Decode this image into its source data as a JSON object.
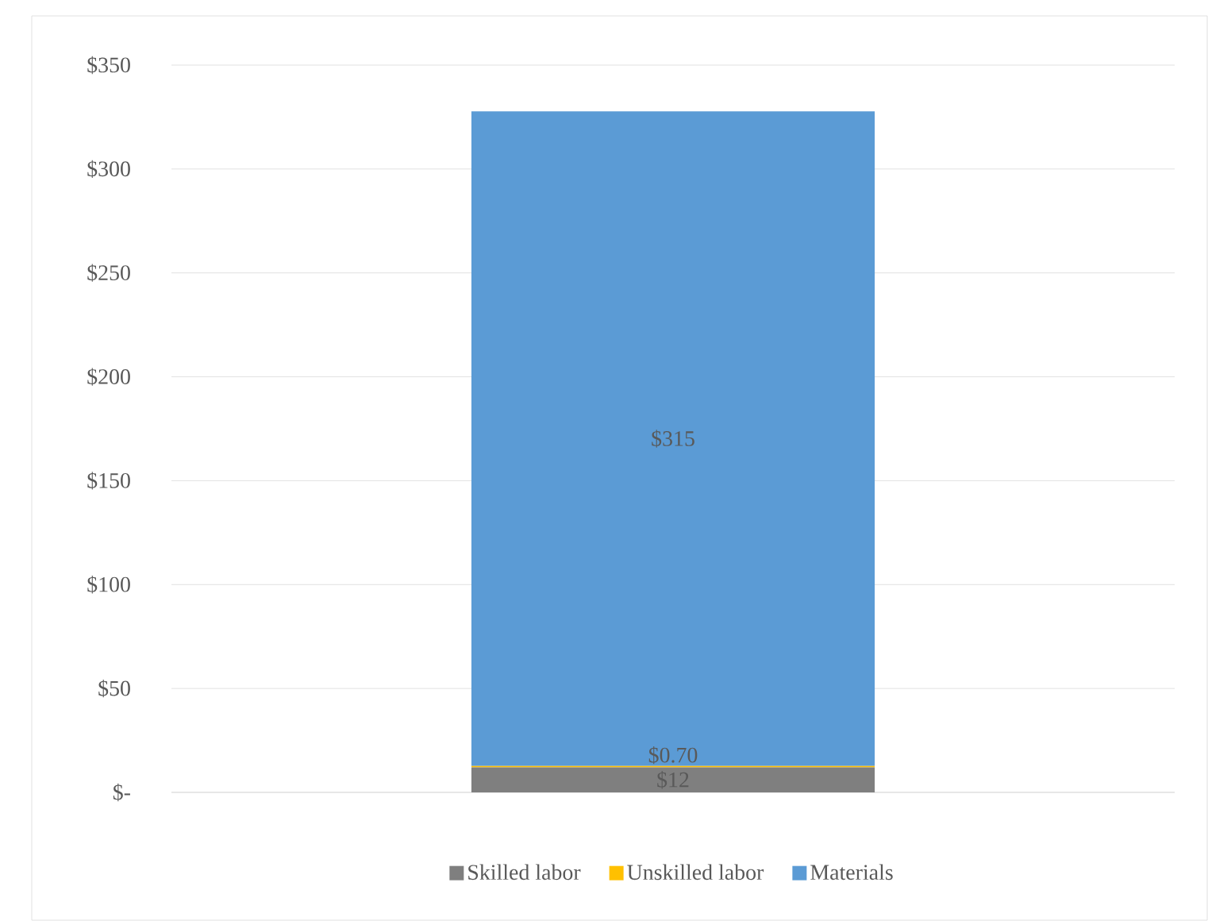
{
  "chart_data": {
    "type": "bar",
    "stacked": true,
    "categories": [
      null
    ],
    "series": [
      {
        "name": "Skilled labor",
        "color": "#7f7f7f",
        "values": [
          12
        ],
        "value_labels": [
          "$12"
        ]
      },
      {
        "name": "Unskilled labor",
        "color": "#ffc000",
        "values": [
          0.7
        ],
        "value_labels": [
          "$0.70"
        ]
      },
      {
        "name": "Materials",
        "color": "#5b9bd5",
        "values": [
          315
        ],
        "value_labels": [
          "$315"
        ]
      }
    ],
    "ylim": [
      0,
      350
    ],
    "yticks": [
      {
        "value": 0,
        "label": "$-"
      },
      {
        "value": 50,
        "label": "$50"
      },
      {
        "value": 100,
        "label": "$100"
      },
      {
        "value": 150,
        "label": "$150"
      },
      {
        "value": 200,
        "label": "$200"
      },
      {
        "value": 250,
        "label": "$250"
      },
      {
        "value": 300,
        "label": "$300"
      },
      {
        "value": 350,
        "label": "$350"
      }
    ],
    "grid": "y",
    "legend": "bottom"
  }
}
